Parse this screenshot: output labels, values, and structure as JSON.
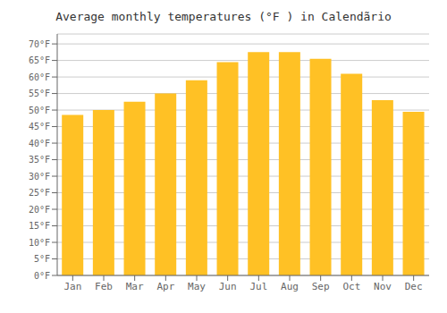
{
  "chart_data": {
    "type": "bar",
    "title": "Average monthly temperatures (°F ) in Calendãrio",
    "categories": [
      "Jan",
      "Feb",
      "Mar",
      "Apr",
      "May",
      "Jun",
      "Jul",
      "Aug",
      "Sep",
      "Oct",
      "Nov",
      "Dec"
    ],
    "values": [
      48.5,
      50.0,
      52.5,
      55.0,
      59.0,
      64.5,
      67.5,
      67.5,
      65.5,
      61.0,
      53.0,
      49.5
    ],
    "color": "#FFC125",
    "ylim": [
      0,
      73
    ],
    "yticks": [
      {
        "value": 0,
        "label": "0°F"
      },
      {
        "value": 5,
        "label": "5°F"
      },
      {
        "value": 10,
        "label": "10°F"
      },
      {
        "value": 15,
        "label": "15°F"
      },
      {
        "value": 20,
        "label": "20°F"
      },
      {
        "value": 25,
        "label": "25°F"
      },
      {
        "value": 30,
        "label": "30°F"
      },
      {
        "value": 35,
        "label": "35°F"
      },
      {
        "value": 40,
        "label": "40°F"
      },
      {
        "value": 45,
        "label": "45°F"
      },
      {
        "value": 50,
        "label": "50°F"
      },
      {
        "value": 55,
        "label": "55°F"
      },
      {
        "value": 60,
        "label": "60°F"
      },
      {
        "value": 65,
        "label": "65°F"
      },
      {
        "value": 70,
        "label": "70°F"
      }
    ],
    "grid": true
  }
}
